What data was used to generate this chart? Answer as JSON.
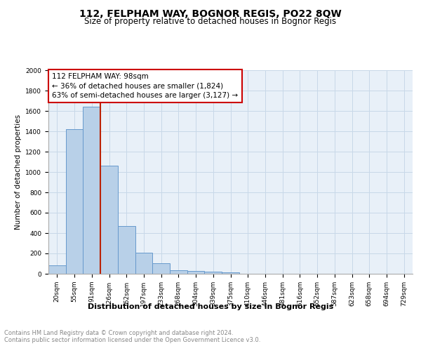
{
  "title": "112, FELPHAM WAY, BOGNOR REGIS, PO22 8QW",
  "subtitle": "Size of property relative to detached houses in Bognor Regis",
  "xlabel": "Distribution of detached houses by size in Bognor Regis",
  "ylabel": "Number of detached properties",
  "categories": [
    "20sqm",
    "55sqm",
    "91sqm",
    "126sqm",
    "162sqm",
    "197sqm",
    "233sqm",
    "268sqm",
    "304sqm",
    "339sqm",
    "375sqm",
    "410sqm",
    "446sqm",
    "481sqm",
    "516sqm",
    "552sqm",
    "587sqm",
    "623sqm",
    "658sqm",
    "694sqm",
    "729sqm"
  ],
  "values": [
    80,
    1420,
    1640,
    1060,
    470,
    205,
    105,
    35,
    25,
    20,
    15,
    0,
    0,
    0,
    0,
    0,
    0,
    0,
    0,
    0,
    0
  ],
  "bar_color": "#b8d0e8",
  "bar_edge_color": "#6699cc",
  "property_line_color": "#bb2200",
  "annotation_line1": "112 FELPHAM WAY: 98sqm",
  "annotation_line2": "← 36% of detached houses are smaller (1,824)",
  "annotation_line3": "63% of semi-detached houses are larger (3,127) →",
  "annotation_box_color": "#ffffff",
  "annotation_box_edge_color": "#cc0000",
  "ylim": [
    0,
    2000
  ],
  "yticks": [
    0,
    200,
    400,
    600,
    800,
    1000,
    1200,
    1400,
    1600,
    1800,
    2000
  ],
  "grid_color": "#c8d8e8",
  "background_color": "#e8f0f8",
  "title_fontsize": 10,
  "subtitle_fontsize": 8.5,
  "xlabel_fontsize": 8,
  "ylabel_fontsize": 7.5,
  "tick_fontsize": 6.5,
  "annotation_fontsize": 7.5,
  "footer_text": "Contains HM Land Registry data © Crown copyright and database right 2024.\nContains public sector information licensed under the Open Government Licence v3.0.",
  "footer_fontsize": 6
}
